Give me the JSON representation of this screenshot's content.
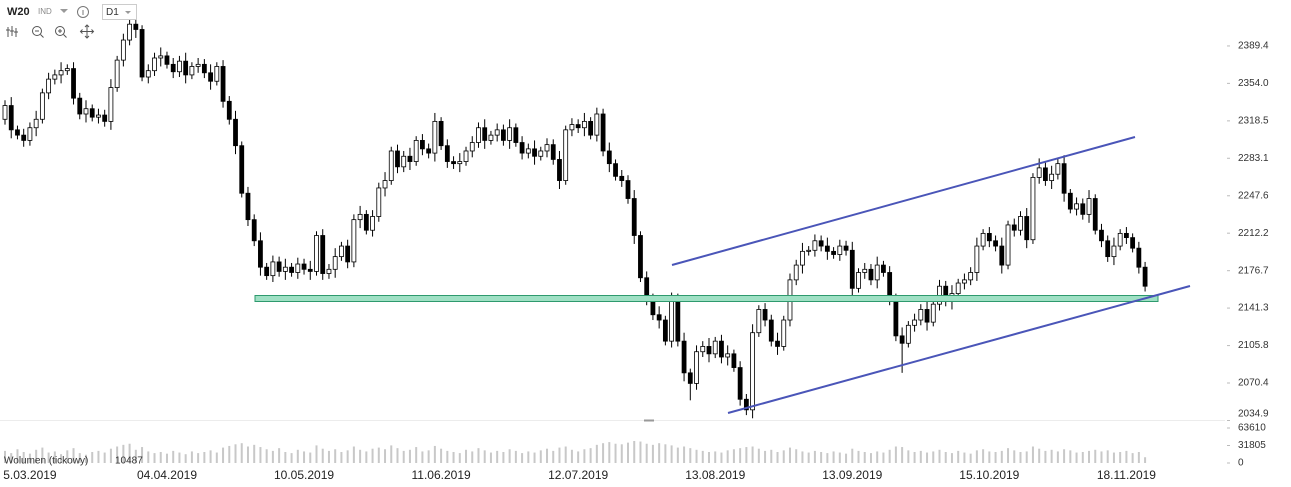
{
  "toolbar": {
    "symbol": "W20",
    "market": "IND",
    "interval": "D1"
  },
  "chart_data": {
    "type": "candlestick",
    "ylim": [
      2034.9,
      2432.9
    ],
    "yticks": [
      2034.9,
      2070.4,
      2105.8,
      2141.3,
      2176.7,
      2212.2,
      2247.6,
      2283.1,
      2318.5,
      {
        "value": 2354,
        "label": "2354.0"
      },
      2389.4
    ],
    "xticks": [
      {
        "value": 4,
        "label": "5.03.2019"
      },
      {
        "value": 26,
        "label": "04.04.2019"
      },
      {
        "value": 48,
        "label": "10.05.2019"
      },
      {
        "value": 70,
        "label": "11.06.2019"
      },
      {
        "value": 92,
        "label": "12.07.2019"
      },
      {
        "value": 114,
        "label": "13.08.2019"
      },
      {
        "value": 136,
        "label": "13.09.2019"
      },
      {
        "value": 158,
        "label": "15.10.2019"
      },
      {
        "value": 180,
        "label": "18.11.2019"
      }
    ],
    "up_color": "#ffffff",
    "down_color": "#000000",
    "volume_color": "#c8c8c8",
    "open": [
      2320,
      2333,
      2310,
      2305,
      2300,
      2312,
      2320,
      2345,
      2358,
      2362,
      2366,
      2368,
      2340,
      2325,
      2330,
      2322,
      2324,
      2318,
      2350,
      2376,
      2395,
      2410,
      2405,
      2360,
      2366,
      2378,
      2380,
      2372,
      2365,
      2375,
      2362,
      2370,
      2372,
      2364,
      2356,
      2370,
      2337,
      2320,
      2295,
      2250,
      2225,
      2205,
      2180,
      2172,
      2185,
      2176,
      2180,
      2175,
      2183,
      2178,
      2176,
      2210,
      2174,
      2178,
      2190,
      2200,
      2185,
      2225,
      2230,
      2215,
      2228,
      2255,
      2262,
      2290,
      2275,
      2285,
      2280,
      2300,
      2292,
      2288,
      2318,
      2295,
      2280,
      2278,
      2280,
      2290,
      2298,
      2312,
      2300,
      2305,
      2310,
      2300,
      2312,
      2298,
      2288,
      2292,
      2285,
      2290,
      2296,
      2282,
      2262,
      2310,
      2315,
      2312,
      2318,
      2305,
      2325,
      2290,
      2278,
      2266,
      2262,
      2245,
      2210,
      2170,
      2150,
      2135,
      2130,
      2110,
      2150,
      2110,
      2080,
      2070,
      2100,
      2105,
      2098,
      2110,
      2095,
      2098,
      2085,
      2055,
      2045,
      2118,
      2140,
      2130,
      2110,
      2105,
      2130,
      2168,
      2182,
      2195,
      2196,
      2205,
      2200,
      2195,
      2192,
      2200,
      2196,
      2160,
      2175,
      2178,
      2168,
      2182,
      2175,
      2150,
      2115,
      2108,
      2125,
      2130,
      2140,
      2128,
      2145,
      2162,
      2148,
      2155,
      2165,
      2168,
      2175,
      2200,
      2212,
      2205,
      2200,
      2182,
      2220,
      2215,
      2228,
      2206,
      2265,
      2274,
      2262,
      2268,
      2278,
      2250,
      2235,
      2240,
      2230,
      2245,
      2215,
      2205,
      2190,
      2200,
      2212,
      2208,
      2198,
      2180
    ],
    "high": [
      2338,
      2341,
      2314,
      2311,
      2317,
      2328,
      2349,
      2364,
      2367,
      2374,
      2372,
      2374,
      2345,
      2338,
      2334,
      2330,
      2329,
      2358,
      2380,
      2401,
      2415,
      2418,
      2409,
      2372,
      2383,
      2388,
      2384,
      2378,
      2380,
      2383,
      2374,
      2378,
      2377,
      2372,
      2374,
      2376,
      2342,
      2328,
      2299,
      2256,
      2230,
      2213,
      2184,
      2191,
      2190,
      2188,
      2184,
      2189,
      2188,
      2186,
      2214,
      2216,
      2183,
      2198,
      2204,
      2206,
      2230,
      2238,
      2234,
      2234,
      2260,
      2270,
      2294,
      2296,
      2290,
      2293,
      2304,
      2306,
      2297,
      2326,
      2322,
      2301,
      2285,
      2288,
      2294,
      2304,
      2317,
      2320,
      2309,
      2316,
      2315,
      2320,
      2316,
      2304,
      2297,
      2300,
      2294,
      2302,
      2301,
      2290,
      2314,
      2321,
      2320,
      2326,
      2322,
      2331,
      2330,
      2298,
      2282,
      2272,
      2267,
      2253,
      2214,
      2176,
      2155,
      2143,
      2134,
      2156,
      2155,
      2118,
      2084,
      2106,
      2110,
      2113,
      2114,
      2116,
      2106,
      2102,
      2091,
      2060,
      2126,
      2144,
      2146,
      2135,
      2118,
      2134,
      2174,
      2187,
      2203,
      2200,
      2211,
      2210,
      2208,
      2199,
      2206,
      2205,
      2204,
      2179,
      2184,
      2183,
      2190,
      2186,
      2181,
      2155,
      2123,
      2129,
      2136,
      2145,
      2148,
      2149,
      2168,
      2167,
      2163,
      2169,
      2174,
      2180,
      2208,
      2216,
      2218,
      2210,
      2208,
      2224,
      2226,
      2233,
      2236,
      2269,
      2283,
      2279,
      2276,
      2283,
      2286,
      2254,
      2246,
      2245,
      2253,
      2249,
      2221,
      2210,
      2208,
      2216,
      2218,
      2212,
      2204,
      2185
    ],
    "low": [
      2315,
      2302,
      2301,
      2294,
      2295,
      2304,
      2316,
      2339,
      2353,
      2354,
      2362,
      2334,
      2320,
      2317,
      2318,
      2316,
      2313,
      2310,
      2346,
      2370,
      2390,
      2397,
      2356,
      2354,
      2361,
      2370,
      2368,
      2359,
      2360,
      2354,
      2358,
      2364,
      2359,
      2348,
      2352,
      2331,
      2315,
      2287,
      2246,
      2219,
      2200,
      2172,
      2168,
      2166,
      2171,
      2168,
      2171,
      2169,
      2173,
      2168,
      2172,
      2168,
      2169,
      2170,
      2186,
      2179,
      2180,
      2217,
      2211,
      2209,
      2223,
      2247,
      2258,
      2269,
      2270,
      2272,
      2276,
      2286,
      2283,
      2280,
      2291,
      2274,
      2273,
      2270,
      2276,
      2284,
      2293,
      2292,
      2296,
      2299,
      2295,
      2292,
      2294,
      2282,
      2283,
      2277,
      2281,
      2284,
      2277,
      2254,
      2258,
      2304,
      2307,
      2304,
      2301,
      2299,
      2285,
      2270,
      2262,
      2256,
      2240,
      2202,
      2166,
      2144,
      2130,
      2122,
      2106,
      2104,
      2105,
      2072,
      2054,
      2064,
      2095,
      2090,
      2094,
      2089,
      2087,
      2081,
      2049,
      2040,
      2037,
      2114,
      2124,
      2105,
      2097,
      2101,
      2124,
      2163,
      2174,
      2191,
      2190,
      2195,
      2187,
      2188,
      2186,
      2191,
      2152,
      2156,
      2169,
      2163,
      2160,
      2171,
      2144,
      2110,
      2080,
      2104,
      2119,
      2125,
      2120,
      2124,
      2139,
      2143,
      2140,
      2151,
      2159,
      2163,
      2167,
      2196,
      2199,
      2195,
      2174,
      2178,
      2209,
      2210,
      2198,
      2202,
      2259,
      2257,
      2254,
      2263,
      2242,
      2231,
      2229,
      2225,
      2222,
      2211,
      2199,
      2185,
      2182,
      2196,
      2202,
      2194,
      2174,
      2157
    ],
    "close": [
      2333,
      2310,
      2305,
      2300,
      2312,
      2320,
      2345,
      2358,
      2362,
      2366,
      2368,
      2340,
      2325,
      2330,
      2322,
      2324,
      2318,
      2350,
      2376,
      2395,
      2410,
      2405,
      2360,
      2366,
      2378,
      2380,
      2372,
      2365,
      2375,
      2362,
      2370,
      2372,
      2364,
      2356,
      2370,
      2337,
      2320,
      2295,
      2250,
      2225,
      2205,
      2180,
      2172,
      2185,
      2176,
      2180,
      2175,
      2183,
      2178,
      2176,
      2210,
      2174,
      2178,
      2190,
      2200,
      2185,
      2225,
      2230,
      2215,
      2228,
      2255,
      2262,
      2290,
      2275,
      2285,
      2280,
      2300,
      2292,
      2288,
      2318,
      2295,
      2280,
      2278,
      2280,
      2290,
      2298,
      2312,
      2300,
      2305,
      2310,
      2300,
      2312,
      2298,
      2288,
      2292,
      2285,
      2290,
      2296,
      2282,
      2262,
      2310,
      2315,
      2312,
      2318,
      2305,
      2325,
      2290,
      2278,
      2266,
      2262,
      2245,
      2210,
      2170,
      2150,
      2135,
      2130,
      2110,
      2150,
      2110,
      2080,
      2070,
      2100,
      2105,
      2098,
      2110,
      2095,
      2098,
      2085,
      2055,
      2045,
      2118,
      2140,
      2130,
      2110,
      2105,
      2130,
      2168,
      2182,
      2195,
      2196,
      2205,
      2200,
      2195,
      2192,
      2200,
      2196,
      2160,
      2175,
      2178,
      2168,
      2182,
      2175,
      2150,
      2115,
      2108,
      2125,
      2130,
      2140,
      2128,
      2145,
      2162,
      2148,
      2155,
      2165,
      2168,
      2175,
      2200,
      2212,
      2205,
      2200,
      2182,
      2220,
      2215,
      2228,
      2206,
      2265,
      2274,
      2262,
      2268,
      2278,
      2250,
      2235,
      2240,
      2230,
      2245,
      2215,
      2205,
      2190,
      2200,
      2212,
      2208,
      2198,
      2180,
      2162
    ],
    "volume_name": "Wolumen (tickowy)",
    "volume_ylim": [
      0,
      63610
    ],
    "volume_ticks": [
      0,
      31805,
      63610
    ],
    "volume": [
      22000,
      18000,
      25000,
      20000,
      17000,
      24000,
      28000,
      19000,
      21000,
      16000,
      23000,
      27000,
      18000,
      15000,
      20000,
      22000,
      19000,
      26000,
      30000,
      33000,
      35000,
      24000,
      29000,
      21000,
      18000,
      20000,
      17000,
      22000,
      19000,
      16000,
      21000,
      18000,
      20000,
      23000,
      19000,
      28000,
      31000,
      34000,
      36000,
      30000,
      33000,
      29000,
      25000,
      22000,
      27000,
      20000,
      18000,
      24000,
      21000,
      19000,
      32000,
      26000,
      22000,
      25000,
      20000,
      23000,
      30000,
      24000,
      21000,
      26000,
      28000,
      25000,
      32000,
      27000,
      22000,
      24000,
      29000,
      21000,
      23000,
      31000,
      26000,
      22000,
      20000,
      18000,
      24000,
      21000,
      27000,
      23000,
      19000,
      22000,
      20000,
      25000,
      22000,
      18000,
      21000,
      19000,
      23000,
      26000,
      22000,
      28000,
      30000,
      24000,
      21000,
      25000,
      27000,
      33000,
      36000,
      38000,
      35000,
      34000,
      37000,
      40000,
      39000,
      35000,
      33000,
      36000,
      34000,
      32000,
      28000,
      30000,
      27000,
      24000,
      22000,
      20000,
      21000,
      19000,
      23000,
      25000,
      27000,
      29000,
      30000,
      26000,
      22000,
      24000,
      20000,
      23000,
      28000,
      25000,
      21000,
      19000,
      22000,
      20000,
      18000,
      21000,
      19000,
      17000,
      26000,
      22000,
      20000,
      18000,
      21000,
      19000,
      24000,
      30000,
      29000,
      23000,
      20000,
      22000,
      19000,
      21000,
      24000,
      20000,
      18000,
      22000,
      19000,
      17000,
      23000,
      25000,
      21000,
      20000,
      22000,
      27000,
      23000,
      20000,
      21000,
      30000,
      26000,
      22000,
      24000,
      21000,
      25000,
      23000,
      19000,
      20000,
      22000,
      24000,
      21000,
      23000,
      19000,
      20000,
      22000,
      18000,
      20000,
      10487
    ]
  }
}
